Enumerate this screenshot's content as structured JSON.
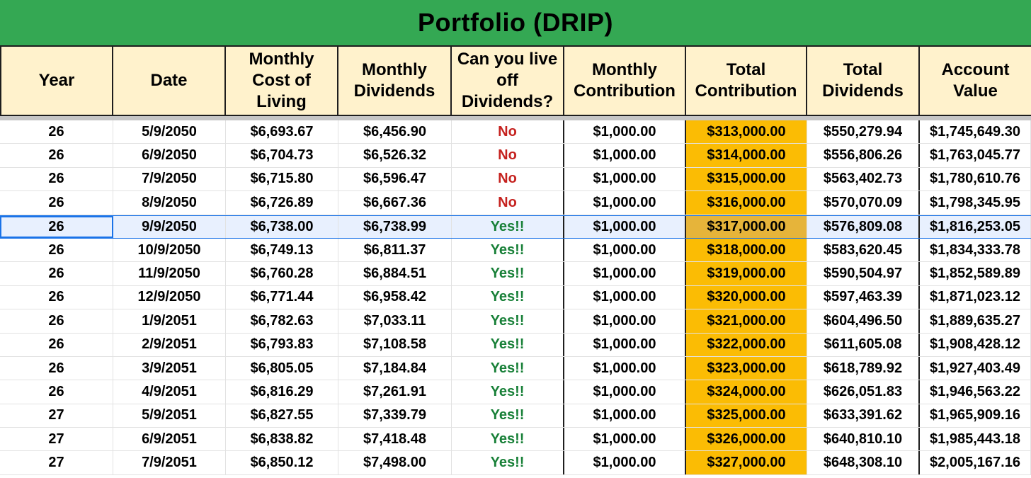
{
  "sheet": {
    "title": "Portfolio (DRIP)"
  },
  "headers": [
    "Year",
    "Date",
    "Monthly Cost of Living",
    "Monthly Dividends",
    "Can you live off Dividends?",
    "Monthly Contribution",
    "Total Contribution",
    "Total Dividends",
    "Account Value"
  ],
  "colors": {
    "title_bg": "#34a853",
    "header_bg": "#fff2cc",
    "total_contribution_bg": "#fbbc04",
    "no_text": "#c5221f",
    "yes_text": "#188038",
    "selection": "#1a73e8"
  },
  "selected_row_index": 4,
  "rows": [
    [
      "26",
      "5/9/2050",
      "$6,693.67",
      "$6,456.90",
      "No",
      "$1,000.00",
      "$313,000.00",
      "$550,279.94",
      "$1,745,649.30"
    ],
    [
      "26",
      "6/9/2050",
      "$6,704.73",
      "$6,526.32",
      "No",
      "$1,000.00",
      "$314,000.00",
      "$556,806.26",
      "$1,763,045.77"
    ],
    [
      "26",
      "7/9/2050",
      "$6,715.80",
      "$6,596.47",
      "No",
      "$1,000.00",
      "$315,000.00",
      "$563,402.73",
      "$1,780,610.76"
    ],
    [
      "26",
      "8/9/2050",
      "$6,726.89",
      "$6,667.36",
      "No",
      "$1,000.00",
      "$316,000.00",
      "$570,070.09",
      "$1,798,345.95"
    ],
    [
      "26",
      "9/9/2050",
      "$6,738.00",
      "$6,738.99",
      "Yes!!",
      "$1,000.00",
      "$317,000.00",
      "$576,809.08",
      "$1,816,253.05"
    ],
    [
      "26",
      "10/9/2050",
      "$6,749.13",
      "$6,811.37",
      "Yes!!",
      "$1,000.00",
      "$318,000.00",
      "$583,620.45",
      "$1,834,333.78"
    ],
    [
      "26",
      "11/9/2050",
      "$6,760.28",
      "$6,884.51",
      "Yes!!",
      "$1,000.00",
      "$319,000.00",
      "$590,504.97",
      "$1,852,589.89"
    ],
    [
      "26",
      "12/9/2050",
      "$6,771.44",
      "$6,958.42",
      "Yes!!",
      "$1,000.00",
      "$320,000.00",
      "$597,463.39",
      "$1,871,023.12"
    ],
    [
      "26",
      "1/9/2051",
      "$6,782.63",
      "$7,033.11",
      "Yes!!",
      "$1,000.00",
      "$321,000.00",
      "$604,496.50",
      "$1,889,635.27"
    ],
    [
      "26",
      "2/9/2051",
      "$6,793.83",
      "$7,108.58",
      "Yes!!",
      "$1,000.00",
      "$322,000.00",
      "$611,605.08",
      "$1,908,428.12"
    ],
    [
      "26",
      "3/9/2051",
      "$6,805.05",
      "$7,184.84",
      "Yes!!",
      "$1,000.00",
      "$323,000.00",
      "$618,789.92",
      "$1,927,403.49"
    ],
    [
      "26",
      "4/9/2051",
      "$6,816.29",
      "$7,261.91",
      "Yes!!",
      "$1,000.00",
      "$324,000.00",
      "$626,051.83",
      "$1,946,563.22"
    ],
    [
      "27",
      "5/9/2051",
      "$6,827.55",
      "$7,339.79",
      "Yes!!",
      "$1,000.00",
      "$325,000.00",
      "$633,391.62",
      "$1,965,909.16"
    ],
    [
      "27",
      "6/9/2051",
      "$6,838.82",
      "$7,418.48",
      "Yes!!",
      "$1,000.00",
      "$326,000.00",
      "$640,810.10",
      "$1,985,443.18"
    ],
    [
      "27",
      "7/9/2051",
      "$6,850.12",
      "$7,498.00",
      "Yes!!",
      "$1,000.00",
      "$327,000.00",
      "$648,308.10",
      "$2,005,167.16"
    ]
  ]
}
